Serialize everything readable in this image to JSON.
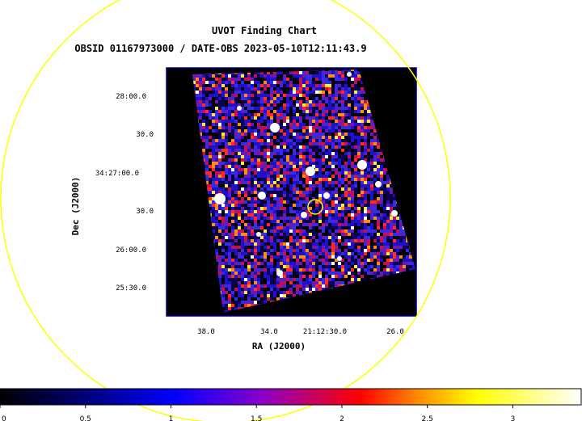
{
  "title": "UVOT Finding Chart",
  "subtitle": "OBSID 01167973000 / DATE-OBS 2023-05-10T12:11:43.9",
  "axes": {
    "xlabel": "RA (J2000)",
    "ylabel": "Dec (J2000)",
    "ra_ticks": [
      "38.0",
      "34.0",
      "21:12:30.0",
      "26.0"
    ],
    "dec_ticks": [
      "28:00.0",
      "30.0",
      "34:27:00.0",
      "30.0",
      "26:00.0",
      "25:30.0"
    ]
  },
  "colorbar": {
    "ticks": [
      "0",
      "0.5",
      "1",
      "1.5",
      "2",
      "2.5",
      "3"
    ],
    "range": [
      0,
      3.4
    ],
    "colors": [
      "#000000",
      "#0000ff",
      "#ff0000",
      "#ffff00",
      "#ffffff"
    ]
  },
  "colors": {
    "background": "#ffffff",
    "plot_frame": "#000080",
    "marker_circle": "#ffff00",
    "field_circle": "#ffff00"
  }
}
